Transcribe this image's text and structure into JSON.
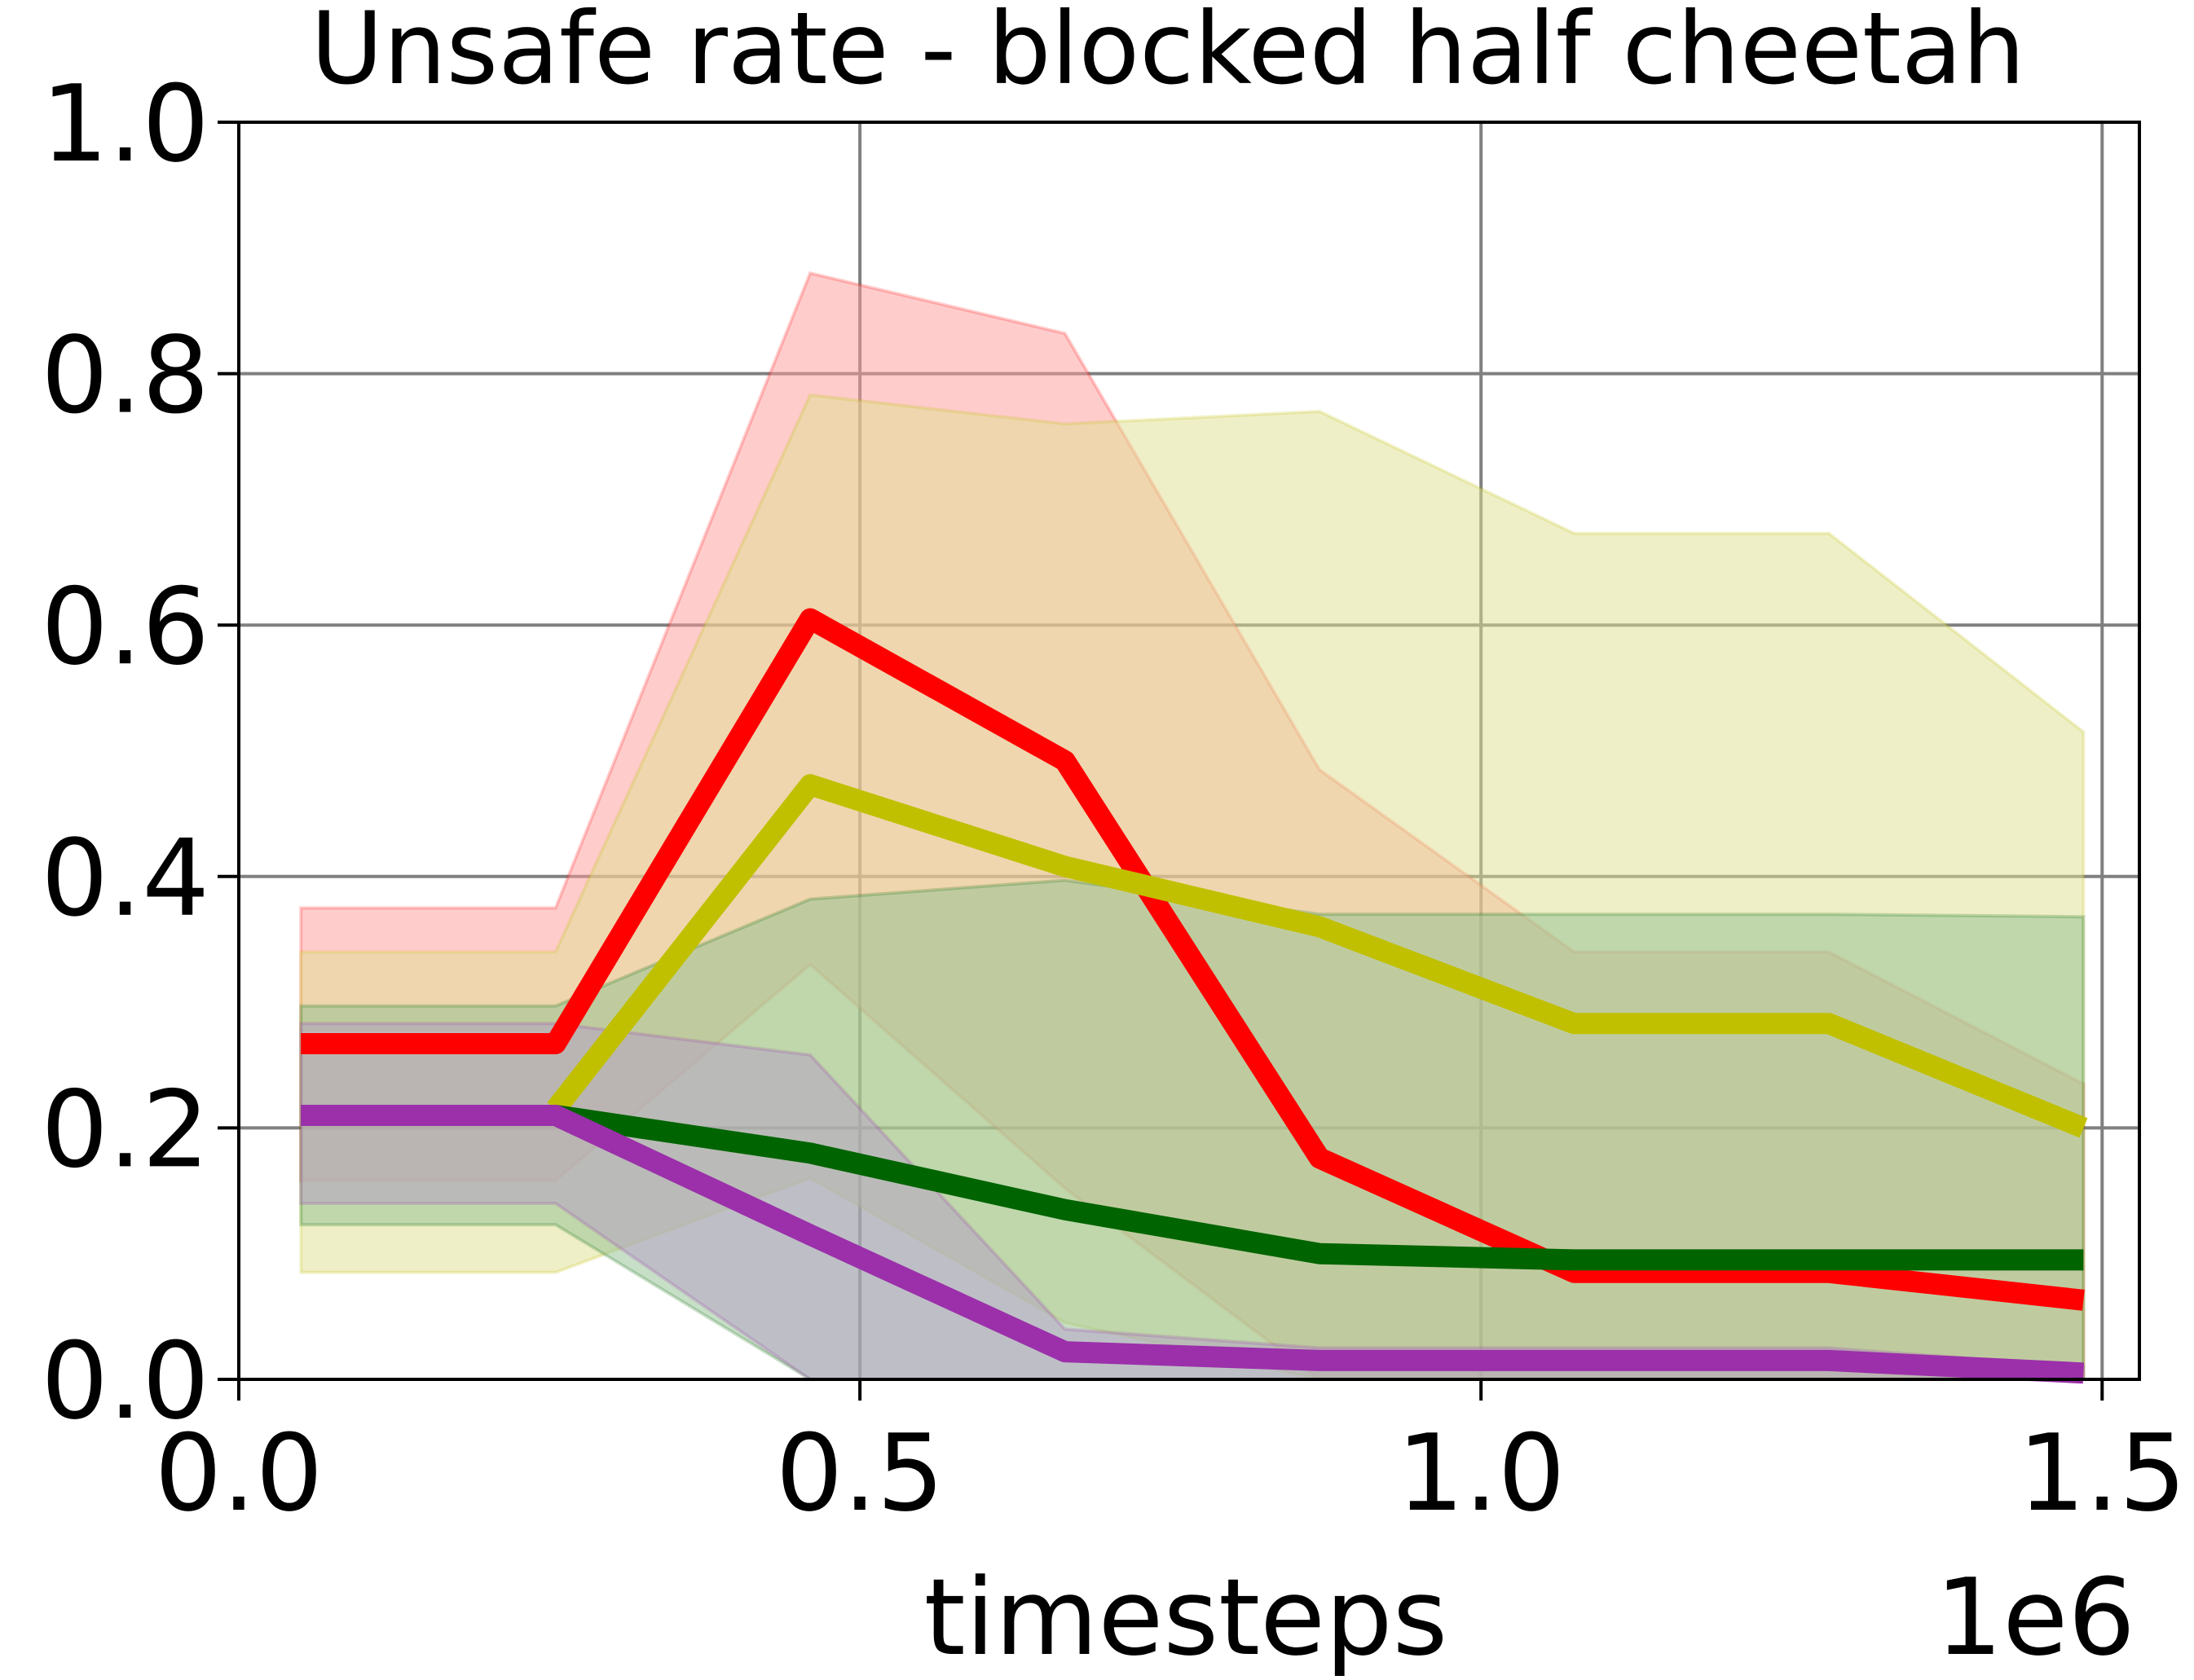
{
  "chart_data": {
    "type": "line",
    "title": "Unsafe rate - blocked half cheetah",
    "xlabel": "timesteps",
    "ylabel": "",
    "x_offset_label": "1e6",
    "xlim": [
      0.0,
      1.53
    ],
    "ylim": [
      0.0,
      1.0
    ],
    "xticks": [
      0.0,
      0.5,
      1.0,
      1.5
    ],
    "xtick_labels": [
      "0.0",
      "0.5",
      "1.0",
      "1.5"
    ],
    "yticks": [
      0.0,
      0.2,
      0.4,
      0.6,
      0.8,
      1.0
    ],
    "ytick_labels": [
      "0.0",
      "0.2",
      "0.4",
      "0.6",
      "0.8",
      "1.0"
    ],
    "grid": true,
    "legend": "none",
    "x": [
      0.05,
      0.255,
      0.46,
      0.665,
      0.87,
      1.075,
      1.28,
      1.485
    ],
    "series": [
      {
        "color": "#ff0000",
        "band_color": "#ff9999",
        "values": [
          0.267,
          0.267,
          0.605,
          0.492,
          0.176,
          0.085,
          0.085,
          0.063
        ],
        "upper": [
          0.375,
          0.375,
          0.88,
          0.832,
          0.485,
          0.34,
          0.34,
          0.235
        ],
        "lower": [
          0.158,
          0.158,
          0.33,
          0.152,
          0.0,
          0.0,
          0.0,
          0.0
        ]
      },
      {
        "color": "#c0c000",
        "band_color": "#e0e090",
        "values": [
          null,
          0.215,
          0.473,
          0.408,
          0.36,
          0.283,
          0.283,
          0.2
        ],
        "upper": [
          0.34,
          0.34,
          0.783,
          0.76,
          0.77,
          0.673,
          0.673,
          0.515
        ],
        "lower": [
          0.085,
          0.085,
          0.16,
          0.045,
          0.0,
          0.0,
          0.0,
          0.0
        ]
      },
      {
        "color": "#006400",
        "band_color": "#90c090",
        "values": [
          0.21,
          0.21,
          0.18,
          0.135,
          0.1,
          0.095,
          0.095,
          0.095
        ],
        "upper": [
          0.297,
          0.297,
          0.382,
          0.397,
          0.37,
          0.37,
          0.37,
          0.368
        ],
        "lower": [
          0.123,
          0.123,
          0.0,
          0.0,
          0.0,
          0.0,
          0.0,
          0.0
        ]
      },
      {
        "color": "#9b30aa",
        "band_color": "#b6a0c6",
        "values": [
          0.21,
          0.21,
          0.115,
          0.022,
          0.015,
          0.015,
          0.015,
          0.005
        ],
        "upper": [
          0.283,
          0.283,
          0.258,
          0.04,
          0.025,
          0.025,
          0.025,
          0.01
        ],
        "lower": [
          0.14,
          0.14,
          0.0,
          0.0,
          0.0,
          0.0,
          0.0,
          0.0
        ]
      }
    ]
  }
}
